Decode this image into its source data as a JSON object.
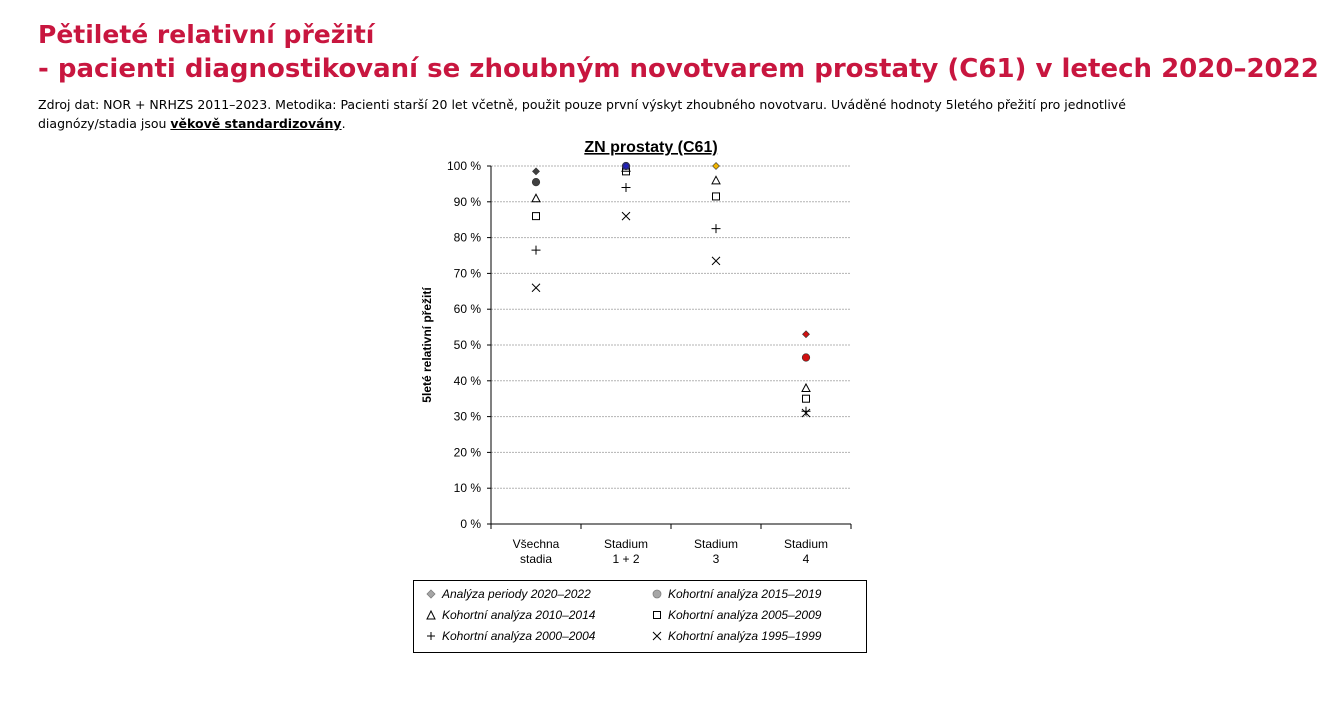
{
  "page": {
    "title": "Pětileté relativní přežití",
    "subtitle": "- pacienti diagnostikovaní se zhoubným novotvarem prostaty (C61) v letech 2020–2022",
    "source_prefix": "Zdroj dat: NOR + NRHZS 2011–2023. Metodika: Pacienti starší 20 let včetně, použit pouze první výskyt zhoubného novotvaru. Uváděné hodnoty 5letého přežití pro jednotlivé diagnózy/stadia jsou ",
    "source_emphasis": "věkově standardizovány",
    "source_suffix": "."
  },
  "legend": {
    "period_2020_2022": "Analýza periody 2020–2022",
    "cohort_2015_2019": "Kohortní analýza 2015–2019",
    "cohort_2010_2014": "Kohortní analýza 2010–2014",
    "cohort_2005_2009": "Kohortní analýza 2005–2009",
    "cohort_2000_2004": "Kohortní analýza 2000–2004",
    "cohort_1995_1999": "Kohortní analýza 1995–1999"
  },
  "chart_data": {
    "type": "scatter",
    "title": "ZN prostaty (C61)",
    "ylabel": "5leté relativní přežití",
    "xlabel": "",
    "ylim": [
      0,
      100
    ],
    "yticks": [
      0,
      10,
      20,
      30,
      40,
      50,
      60,
      70,
      80,
      90,
      100
    ],
    "ytick_suffix": " %",
    "grid": true,
    "legend_position": "bottom",
    "categories": [
      [
        "Všechna",
        "stadia"
      ],
      [
        "Stadium",
        "1 + 2"
      ],
      [
        "Stadium",
        "3"
      ],
      [
        "Stadium",
        "4"
      ]
    ],
    "point_colors": [
      "#404040",
      "#1f1fbf",
      "#f0b400",
      "#d01010"
    ],
    "series": [
      {
        "name": "Analýza periody 2020–2022",
        "marker": "diamond",
        "values": [
          98.5,
          100,
          100,
          53
        ]
      },
      {
        "name": "Kohortní analýza 2015–2019",
        "marker": "circle",
        "values": [
          95.5,
          100,
          null,
          46.5
        ]
      },
      {
        "name": "Kohortní analýza 2010–2014",
        "marker": "triangle",
        "values": [
          91,
          99.5,
          96,
          38
        ]
      },
      {
        "name": "Kohortní analýza 2005–2009",
        "marker": "square",
        "values": [
          86,
          98.5,
          91.5,
          35
        ]
      },
      {
        "name": "Kohortní analýza 2000–2004",
        "marker": "plus",
        "values": [
          76.5,
          94,
          82.5,
          31.5
        ]
      },
      {
        "name": "Kohortní analýza 1995–1999",
        "marker": "cross",
        "values": [
          66,
          86,
          73.5,
          31
        ]
      }
    ]
  }
}
